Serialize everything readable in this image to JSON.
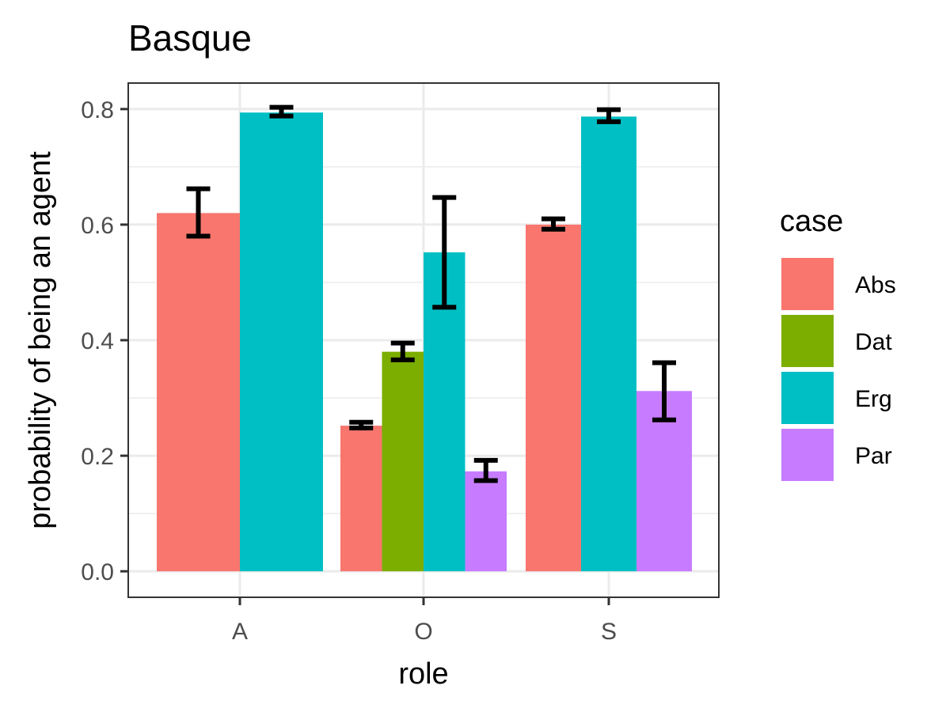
{
  "chart_data": {
    "type": "bar",
    "title": "Basque",
    "xlabel": "role",
    "ylabel": "probability of being an agent",
    "ylim": [
      -0.045,
      0.845
    ],
    "yticks": [
      "0.0",
      "0.2",
      "0.4",
      "0.6",
      "0.8"
    ],
    "ytick_values": [
      0.0,
      0.2,
      0.4,
      0.6,
      0.8
    ],
    "categories": [
      "A",
      "O",
      "S"
    ],
    "legend": {
      "title": "case",
      "position": "right",
      "entries": [
        {
          "name": "Abs",
          "color": "#F8766D"
        },
        {
          "name": "Dat",
          "color": "#7CAE00"
        },
        {
          "name": "Erg",
          "color": "#00BFC4"
        },
        {
          "name": "Par",
          "color": "#C77CFF"
        }
      ]
    },
    "bars": [
      {
        "category": "A",
        "case": "Abs",
        "value": 0.62,
        "err_low": 0.58,
        "err_high": 0.662
      },
      {
        "category": "A",
        "case": "Erg",
        "value": 0.794,
        "err_low": 0.788,
        "err_high": 0.803
      },
      {
        "category": "O",
        "case": "Abs",
        "value": 0.252,
        "err_low": 0.248,
        "err_high": 0.258
      },
      {
        "category": "O",
        "case": "Dat",
        "value": 0.38,
        "err_low": 0.366,
        "err_high": 0.395
      },
      {
        "category": "O",
        "case": "Erg",
        "value": 0.552,
        "err_low": 0.457,
        "err_high": 0.647
      },
      {
        "category": "O",
        "case": "Par",
        "value": 0.173,
        "err_low": 0.157,
        "err_high": 0.192
      },
      {
        "category": "S",
        "case": "Abs",
        "value": 0.6,
        "err_low": 0.592,
        "err_high": 0.61
      },
      {
        "category": "S",
        "case": "Erg",
        "value": 0.787,
        "err_low": 0.778,
        "err_high": 0.799
      },
      {
        "category": "S",
        "case": "Par",
        "value": 0.312,
        "err_low": 0.262,
        "err_high": 0.361
      }
    ]
  }
}
